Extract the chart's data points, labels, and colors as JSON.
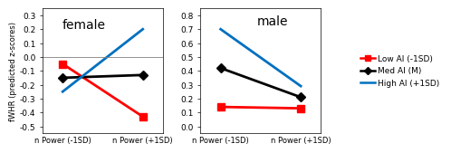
{
  "female_title": "female",
  "male_title": "male",
  "x_labels": [
    "n Power (-1SD)",
    "n Power (+1SD)"
  ],
  "female": {
    "low_ai": [
      -0.05,
      -0.43
    ],
    "med_ai": [
      -0.15,
      -0.13
    ],
    "high_ai": [
      -0.25,
      0.2
    ]
  },
  "male": {
    "low_ai": [
      0.14,
      0.13
    ],
    "med_ai": [
      0.42,
      0.21
    ],
    "high_ai": [
      0.7,
      0.29
    ]
  },
  "female_ylim": [
    -0.55,
    0.35
  ],
  "female_yticks": [
    -0.5,
    -0.4,
    -0.3,
    -0.2,
    -0.1,
    0.0,
    0.1,
    0.2,
    0.3
  ],
  "male_ylim": [
    -0.05,
    0.85
  ],
  "male_yticks": [
    0.0,
    0.1,
    0.2,
    0.3,
    0.4,
    0.5,
    0.6,
    0.7,
    0.8
  ],
  "color_low": "#ff0000",
  "color_med": "#000000",
  "color_high": "#0070c0",
  "ylabel": "fWHR (predicted z-scores)",
  "legend_labels": [
    "Low AI (-1SD)",
    "Med AI (M)",
    "High AI (+1SD)"
  ],
  "marker_square": "s",
  "marker_diamond": "D",
  "linewidth": 2.0,
  "markersize": 5.5
}
